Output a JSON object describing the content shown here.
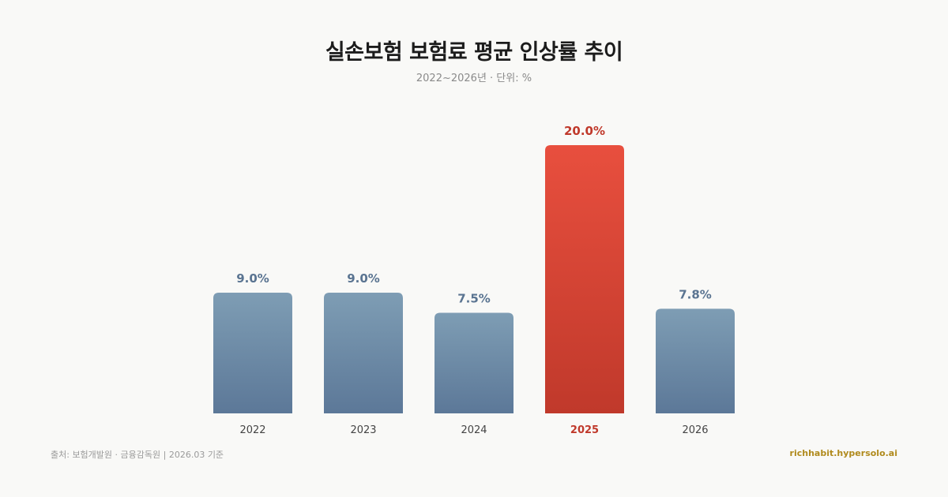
{
  "header": {
    "title": "실손보험 보험료 평균 인상률 추이",
    "subtitle": "2022~2026년 · 단위: %"
  },
  "footer": {
    "source": "출처: 보험개발원 · 금융감독원 | 2026.03 기준",
    "brand": "richhabit.hypersolo.ai"
  },
  "colors": {
    "normal_top": "#7e9db4",
    "normal_bottom": "#5c7898",
    "highlight_top": "#e84f3e",
    "highlight_bottom": "#c0392b",
    "normal_label": "#5a7491",
    "highlight_label": "#c0392b",
    "tick_label": "#444444"
  },
  "chart_data": {
    "type": "bar",
    "categories": [
      "2022",
      "2023",
      "2024",
      "2025",
      "2026"
    ],
    "values": [
      9.0,
      9.0,
      7.5,
      20.0,
      7.8
    ],
    "value_labels": [
      "9.0%",
      "9.0%",
      "7.5%",
      "20.0%",
      "7.8%"
    ],
    "highlight_index": 3,
    "ylim": [
      0,
      20
    ],
    "grid": false,
    "legend": "none"
  }
}
